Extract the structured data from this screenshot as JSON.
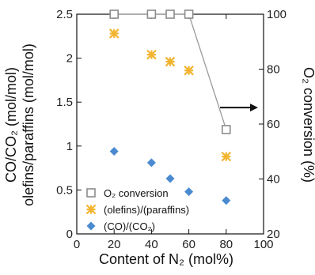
{
  "chart_data": {
    "type": "scatter",
    "x": [
      20,
      40,
      50,
      60,
      80
    ],
    "xlabel": "Content of N₂ (mol%)",
    "xlim": [
      0,
      100
    ],
    "xticks": [
      "0",
      "20",
      "40",
      "60",
      "80",
      "100"
    ],
    "ylabel": "CO/CO₂ (mol/mol)",
    "ylabel_secondary": "olefins/paraffins (mol/mol)",
    "ylim": [
      0,
      2.5
    ],
    "yticks": [
      "0",
      "0.5",
      "1",
      "1.5",
      "2",
      "2.5"
    ],
    "y2label": "O₂ conversion (%)",
    "y2lim": [
      20,
      100
    ],
    "y2ticks": [
      "20",
      "40",
      "60",
      "80",
      "100"
    ],
    "grid": false,
    "legend_placement": "bottom-left",
    "series": [
      {
        "name": "O₂ conversion",
        "axis": "right",
        "marker": "open-square",
        "line": true,
        "color": "#8c8c8c",
        "values": [
          100,
          100,
          100,
          100,
          58
        ]
      },
      {
        "name": "(olefins)/(paraffins)",
        "axis": "left",
        "marker": "asterisk",
        "line": false,
        "color": "#f2b430",
        "values": [
          2.28,
          2.04,
          1.96,
          1.86,
          0.88
        ]
      },
      {
        "name": "(CO)/(CO₂)",
        "axis": "left",
        "marker": "diamond",
        "line": false,
        "color": "#4a8ad0",
        "values": [
          0.94,
          0.81,
          0.63,
          0.48,
          0.38
        ]
      }
    ],
    "annotation_arrow": "points to right axis"
  }
}
